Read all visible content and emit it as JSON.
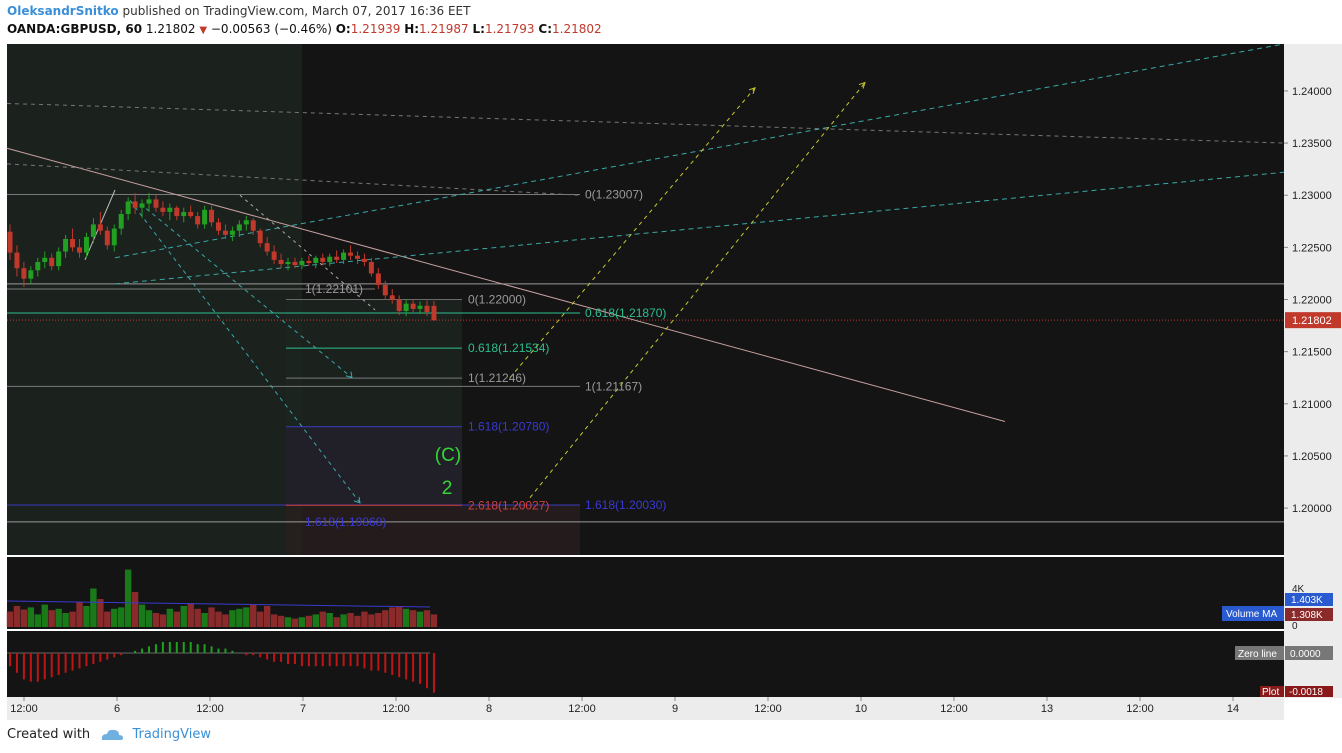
{
  "header": {
    "author": "OleksandrSnitko",
    "published_text": "published on TradingView.com, March 07, 2017 16:36 EET",
    "symbol": "OANDA:GBPUSD, 60",
    "last": "1.21802",
    "change": "−0.00563 (−0.46%)",
    "o_label": "O:",
    "o": "1.21939",
    "h_label": "H:",
    "h": "1.21987",
    "l_label": "L:",
    "l": "1.21793",
    "c_label": "C:",
    "c": "1.21802"
  },
  "footer": {
    "created_with": "Created with",
    "brand": "TradingView"
  },
  "colors": {
    "background": "#141414",
    "up": "#22a022",
    "down": "#c0392b",
    "fib_green": "#2bbf8f",
    "fib_grey": "#9a9a9a",
    "fib_blue": "#3a3ac0",
    "fib_red": "#d04040",
    "cyan": "#3aa8a8",
    "yellow": "#c8c830",
    "wave_label": "#33d633"
  },
  "chart_data": {
    "type": "candlestick",
    "symbol": "OANDA:GBPUSD",
    "interval": "60",
    "ylim": [
      1.1955,
      1.2445
    ],
    "price_ticks": [
      "1.24000",
      "1.23500",
      "1.23000",
      "1.22500",
      "1.22000",
      "1.21500",
      "1.21000",
      "1.20500",
      "1.20000"
    ],
    "time_ticks": [
      "12:00",
      "6",
      "12:00",
      "7",
      "12:00",
      "8",
      "12:00",
      "9",
      "12:00",
      "10",
      "12:00",
      "13",
      "12:00",
      "14"
    ],
    "last_price_label": "1.21802",
    "candles": [
      [
        1.2265,
        1.2272,
        1.2238,
        1.2245
      ],
      [
        1.2245,
        1.2252,
        1.2222,
        1.223
      ],
      [
        1.223,
        1.2236,
        1.2212,
        1.222
      ],
      [
        1.222,
        1.2232,
        1.2215,
        1.2228
      ],
      [
        1.2228,
        1.224,
        1.2222,
        1.2236
      ],
      [
        1.2236,
        1.2246,
        1.223,
        1.224
      ],
      [
        1.224,
        1.2244,
        1.2228,
        1.2232
      ],
      [
        1.2232,
        1.225,
        1.2228,
        1.2246
      ],
      [
        1.2246,
        1.2262,
        1.224,
        1.2258
      ],
      [
        1.2258,
        1.2268,
        1.2246,
        1.225
      ],
      [
        1.225,
        1.2258,
        1.224,
        1.2245
      ],
      [
        1.2245,
        1.2264,
        1.224,
        1.226
      ],
      [
        1.226,
        1.2278,
        1.2254,
        1.2272
      ],
      [
        1.2272,
        1.2284,
        1.2262,
        1.2266
      ],
      [
        1.2266,
        1.227,
        1.2248,
        1.2252
      ],
      [
        1.2252,
        1.2272,
        1.2246,
        1.2268
      ],
      [
        1.2268,
        1.2286,
        1.2262,
        1.2282
      ],
      [
        1.2282,
        1.2298,
        1.2276,
        1.2294
      ],
      [
        1.2294,
        1.2302,
        1.2282,
        1.2288
      ],
      [
        1.2288,
        1.2296,
        1.2278,
        1.2292
      ],
      [
        1.2292,
        1.2302,
        1.2284,
        1.2296
      ],
      [
        1.2296,
        1.23,
        1.2284,
        1.2288
      ],
      [
        1.2288,
        1.2294,
        1.228,
        1.2284
      ],
      [
        1.2284,
        1.2292,
        1.2276,
        1.2288
      ],
      [
        1.2288,
        1.229,
        1.2276,
        1.228
      ],
      [
        1.228,
        1.2288,
        1.2274,
        1.2284
      ],
      [
        1.2284,
        1.229,
        1.2278,
        1.228
      ],
      [
        1.228,
        1.2284,
        1.2268,
        1.2272
      ],
      [
        1.2272,
        1.229,
        1.2268,
        1.2286
      ],
      [
        1.2286,
        1.229,
        1.227,
        1.2274
      ],
      [
        1.2274,
        1.2278,
        1.2262,
        1.2266
      ],
      [
        1.2266,
        1.2272,
        1.2258,
        1.2262
      ],
      [
        1.2262,
        1.227,
        1.2256,
        1.2266
      ],
      [
        1.2266,
        1.2276,
        1.226,
        1.2272
      ],
      [
        1.2272,
        1.228,
        1.2266,
        1.2276
      ],
      [
        1.2276,
        1.2278,
        1.2262,
        1.2266
      ],
      [
        1.2266,
        1.2268,
        1.225,
        1.2254
      ],
      [
        1.2254,
        1.226,
        1.2242,
        1.2246
      ],
      [
        1.2246,
        1.2252,
        1.2234,
        1.2238
      ],
      [
        1.2238,
        1.2244,
        1.223,
        1.2234
      ],
      [
        1.2234,
        1.224,
        1.2228,
        1.2236
      ],
      [
        1.2236,
        1.224,
        1.223,
        1.2233
      ],
      [
        1.2233,
        1.224,
        1.2229,
        1.2237
      ],
      [
        1.2237,
        1.2242,
        1.2232,
        1.2235
      ],
      [
        1.2235,
        1.2242,
        1.223,
        1.224
      ],
      [
        1.224,
        1.2244,
        1.2233,
        1.2236
      ],
      [
        1.2236,
        1.2244,
        1.2232,
        1.2241
      ],
      [
        1.2241,
        1.2247,
        1.2235,
        1.2238
      ],
      [
        1.2238,
        1.2248,
        1.2234,
        1.2245
      ],
      [
        1.2245,
        1.2252,
        1.2238,
        1.2242
      ],
      [
        1.2242,
        1.2246,
        1.2234,
        1.2239
      ],
      [
        1.2239,
        1.2244,
        1.2232,
        1.2236
      ],
      [
        1.2236,
        1.224,
        1.2222,
        1.2225
      ],
      [
        1.2225,
        1.223,
        1.221,
        1.2214
      ],
      [
        1.2214,
        1.2218,
        1.22,
        1.2204
      ],
      [
        1.2204,
        1.221,
        1.2196,
        1.22
      ],
      [
        1.22,
        1.2204,
        1.2185,
        1.2189
      ],
      [
        1.2189,
        1.22,
        1.2184,
        1.2196
      ],
      [
        1.2196,
        1.22,
        1.2188,
        1.2191
      ],
      [
        1.2191,
        1.2198,
        1.2186,
        1.2194
      ],
      [
        1.2194,
        1.2199,
        1.2184,
        1.2188
      ],
      [
        1.21939,
        1.21987,
        1.21793,
        1.21802
      ]
    ],
    "volume": [
      0.22,
      0.3,
      0.25,
      0.28,
      0.18,
      0.32,
      0.24,
      0.26,
      0.2,
      0.22,
      0.35,
      0.3,
      0.55,
      0.4,
      0.22,
      0.26,
      0.28,
      0.82,
      0.5,
      0.32,
      0.24,
      0.2,
      0.18,
      0.26,
      0.22,
      0.3,
      0.34,
      0.26,
      0.2,
      0.28,
      0.22,
      0.18,
      0.24,
      0.26,
      0.28,
      0.32,
      0.22,
      0.3,
      0.18,
      0.16,
      0.14,
      0.12,
      0.14,
      0.16,
      0.18,
      0.22,
      0.2,
      0.14,
      0.18,
      0.2,
      0.16,
      0.22,
      0.18,
      0.2,
      0.24,
      0.28,
      0.3,
      0.26,
      0.24,
      0.22,
      0.24,
      0.18
    ],
    "volume_axis": [
      "4K",
      "0"
    ],
    "volume_ma_label": "Volume MA",
    "volume_ma_value": "1.403K",
    "volume_value": "1.308K",
    "oscillator": {
      "zero_line_label": "Zero line",
      "zero_value": "0.0000",
      "plot_label": "Plot",
      "plot_value": "-0.0018",
      "values": [
        -0.0006,
        -0.0009,
        -0.0012,
        -0.0013,
        -0.0013,
        -0.0012,
        -0.0011,
        -0.001,
        -0.0009,
        -0.0008,
        -0.0007,
        -0.0006,
        -0.0005,
        -0.0004,
        -0.0003,
        -0.0002,
        -0.0001,
        0.0,
        0.0001,
        0.0002,
        0.0003,
        0.0004,
        0.0005,
        0.0005,
        0.0005,
        0.0005,
        0.0005,
        0.0004,
        0.0004,
        0.0003,
        0.0002,
        0.0002,
        0.0001,
        0.0,
        -0.0001,
        -0.0001,
        -0.0002,
        -0.0003,
        -0.0004,
        -0.0004,
        -0.0005,
        -0.0005,
        -0.0006,
        -0.0006,
        -0.0006,
        -0.0006,
        -0.0006,
        -0.0006,
        -0.0006,
        -0.0006,
        -0.0006,
        -0.0007,
        -0.0008,
        -0.0008,
        -0.0009,
        -0.001,
        -0.0011,
        -0.0012,
        -0.0013,
        -0.0014,
        -0.0016,
        -0.0018
      ]
    },
    "fib_labels": [
      {
        "text": "0(1.23007)",
        "price": 1.23007,
        "color": "grey"
      },
      {
        "text": "1(1.22101)",
        "price": 1.22101,
        "color": "grey"
      },
      {
        "text": "0(1.22000)",
        "price": 1.22,
        "color": "grey"
      },
      {
        "text": "0.618(1.21870)",
        "price": 1.2187,
        "color": "green"
      },
      {
        "text": "0.618(1.21534)",
        "price": 1.21534,
        "color": "green"
      },
      {
        "text": "1(1.21246)",
        "price": 1.21246,
        "color": "grey"
      },
      {
        "text": "1(1.21167)",
        "price": 1.21167,
        "color": "grey"
      },
      {
        "text": "1.618(1.20780)",
        "price": 1.2078,
        "color": "blue"
      },
      {
        "text": "2.618(1.20027)",
        "price": 1.20027,
        "color": "red"
      },
      {
        "text": "1.618(1.20030)",
        "price": 1.2003,
        "color": "blue"
      },
      {
        "text": "1.618(1.19868)",
        "price": 1.19868,
        "color": "blue"
      }
    ],
    "wave_labels": [
      "(C)",
      "2"
    ]
  }
}
